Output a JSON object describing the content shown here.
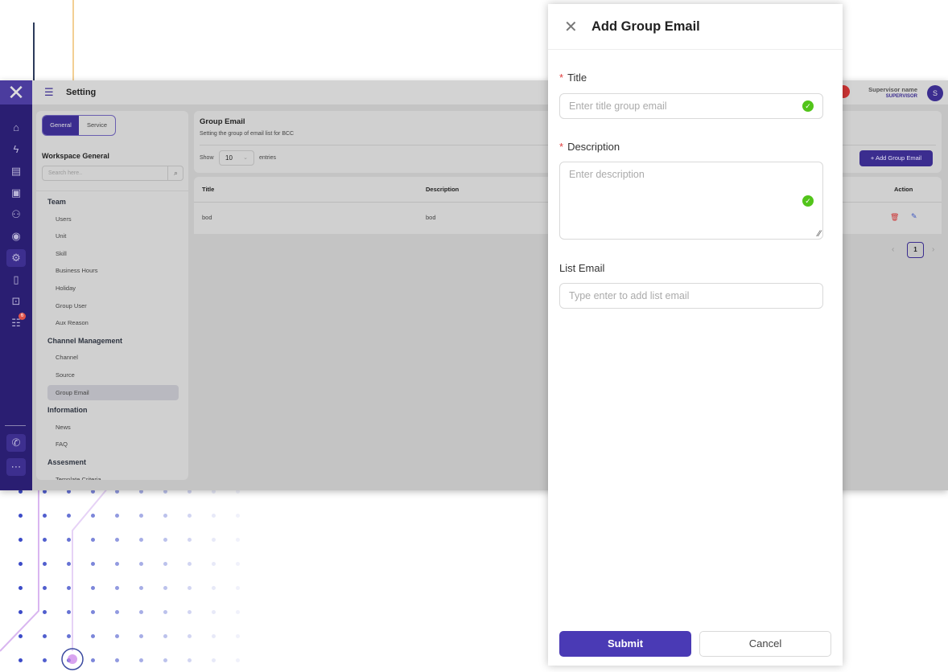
{
  "app": {
    "title": "Setting",
    "user_name": "Supervisor name",
    "user_role": "SUPERVISOR",
    "avatar_letter": "S",
    "notification_count": "6"
  },
  "sidebar_icons": [
    "home-icon",
    "lightning-icon",
    "document-icon",
    "ticket-icon",
    "users-icon",
    "contact-icon",
    "gear-icon",
    "file-icon",
    "presentation-chart-icon",
    "chat-list-icon"
  ],
  "left_panel": {
    "tabs": [
      "General",
      "Service"
    ],
    "active_tab": "General",
    "section_title": "Workspace General",
    "search_placeholder": "Search here..",
    "groups": [
      {
        "title": "Team",
        "items": [
          "Users",
          "Unit",
          "Skill",
          "Business Hours",
          "Holiday",
          "Group User",
          "Aux Reason"
        ]
      },
      {
        "title": "Channel Management",
        "items": [
          "Channel",
          "Source",
          "Group Email"
        ]
      },
      {
        "title": "Information",
        "items": [
          "News",
          "FAQ"
        ]
      },
      {
        "title": "Assesment",
        "items": [
          "Template Criteria"
        ]
      }
    ],
    "active_item": "Group Email"
  },
  "main": {
    "title": "Group Email",
    "subtitle": "Setting the group of email list for BCC",
    "show_label": "Show",
    "entries_value": "10",
    "entries_label": "entries",
    "add_button": "+ Add Group Email",
    "columns": [
      "Title",
      "Description",
      "Action"
    ],
    "rows": [
      {
        "title": "bod",
        "description": "bod"
      }
    ],
    "page": "1"
  },
  "modal": {
    "title": "Add Group Email",
    "fields": {
      "title_label": "Title",
      "title_placeholder": "Enter title group email",
      "description_label": "Description",
      "description_placeholder": "Enter description",
      "list_label": "List Email",
      "list_placeholder": "Type enter to add list email"
    },
    "submit": "Submit",
    "cancel": "Cancel"
  },
  "colors": {
    "primary": "#4a3ab5",
    "success": "#52c41a",
    "required": "#e03c3c"
  }
}
